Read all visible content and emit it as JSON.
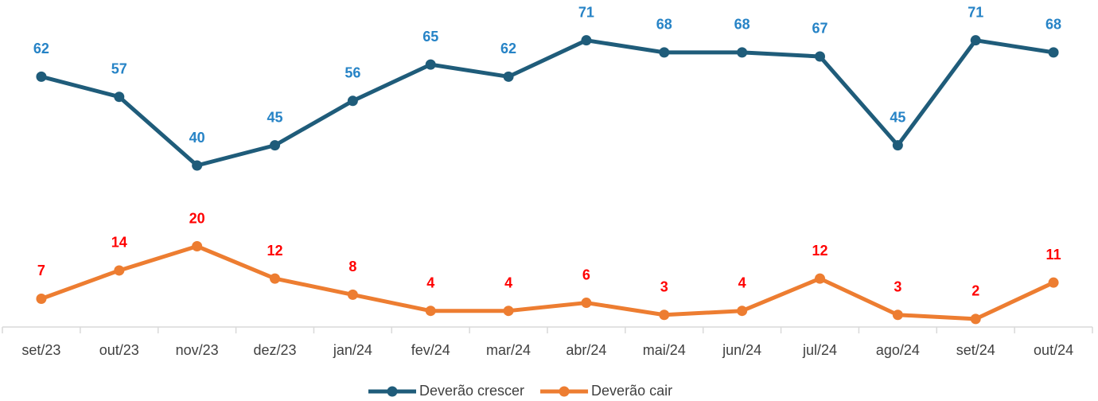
{
  "chart_data": {
    "type": "line",
    "categories": [
      "set/23",
      "out/23",
      "nov/23",
      "dez/23",
      "jan/24",
      "fev/24",
      "mar/24",
      "abr/24",
      "mai/24",
      "jun/24",
      "jul/24",
      "ago/24",
      "set/24",
      "out/24"
    ],
    "series": [
      {
        "name": "Deverão crescer",
        "color": "#1f5c7a",
        "label_color": "#2683c6",
        "values": [
          62,
          57,
          40,
          45,
          56,
          65,
          62,
          71,
          68,
          68,
          67,
          45,
          71,
          68
        ]
      },
      {
        "name": "Deverão cair",
        "color": "#ed7d31",
        "label_color": "#ff0000",
        "values": [
          7,
          14,
          20,
          12,
          8,
          4,
          4,
          6,
          3,
          4,
          12,
          3,
          2,
          11
        ]
      }
    ],
    "ylim": [
      0,
      80
    ]
  }
}
